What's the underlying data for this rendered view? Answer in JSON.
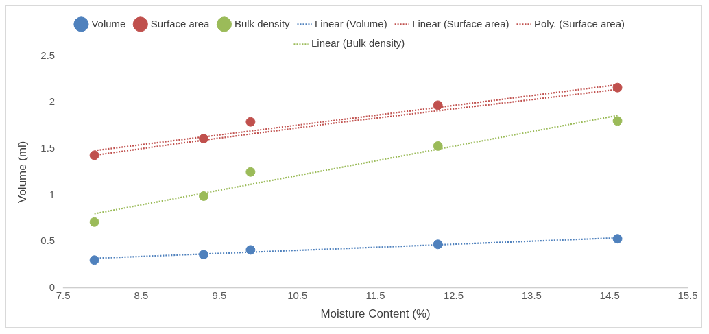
{
  "chart_data": {
    "type": "scatter",
    "xlabel": "Moisture Content (%)",
    "ylabel": "Volume (ml)",
    "xlim": [
      7.5,
      15.5
    ],
    "xticks": [
      7.5,
      8.5,
      9.5,
      10.5,
      11.5,
      12.5,
      13.5,
      14.5,
      15.5
    ],
    "ylim": [
      0,
      2.5
    ],
    "yticks": [
      0,
      0.5,
      1,
      1.5,
      2,
      2.5
    ],
    "grid": false,
    "legend": "top",
    "series": [
      {
        "name": "Volume",
        "type": "scatter",
        "marker": "circle",
        "color": "#4f81bd",
        "x": [
          7.9,
          9.3,
          9.9,
          12.3,
          14.6
        ],
        "values": [
          0.3,
          0.36,
          0.41,
          0.47,
          0.53
        ]
      },
      {
        "name": "Surface area",
        "type": "scatter",
        "marker": "circle",
        "color": "#c0504d",
        "x": [
          7.9,
          9.3,
          9.9,
          12.3,
          14.6
        ],
        "values": [
          1.43,
          1.61,
          1.79,
          1.97,
          2.16
        ]
      },
      {
        "name": "Bulk density",
        "type": "scatter",
        "marker": "circle",
        "color": "#9bbb59",
        "x": [
          7.9,
          9.3,
          9.9,
          12.3,
          14.6
        ],
        "values": [
          0.71,
          0.99,
          1.25,
          1.53,
          1.8
        ]
      },
      {
        "name": "Linear (Volume)",
        "type": "line",
        "line_style": "dotted",
        "color": "#4f81bd",
        "x": [
          7.9,
          14.6
        ],
        "values": [
          0.32,
          0.54
        ]
      },
      {
        "name": "Linear (Surface area)",
        "type": "line",
        "line_style": "dotted",
        "color": "#c0504d",
        "x": [
          7.9,
          14.6
        ],
        "values": [
          1.48,
          2.19
        ]
      },
      {
        "name": "Poly. (Surface area)",
        "type": "line",
        "line_style": "dotted",
        "color": "#c0504d",
        "x": [
          7.9,
          9,
          10,
          11,
          12,
          13,
          14,
          14.6
        ],
        "values": [
          1.43,
          1.56,
          1.67,
          1.78,
          1.88,
          1.98,
          2.08,
          2.14
        ]
      },
      {
        "name": "Linear (Bulk density)",
        "type": "line",
        "line_style": "dotted",
        "color": "#9bbb59",
        "x": [
          7.9,
          14.6
        ],
        "values": [
          0.8,
          1.86
        ]
      }
    ]
  }
}
